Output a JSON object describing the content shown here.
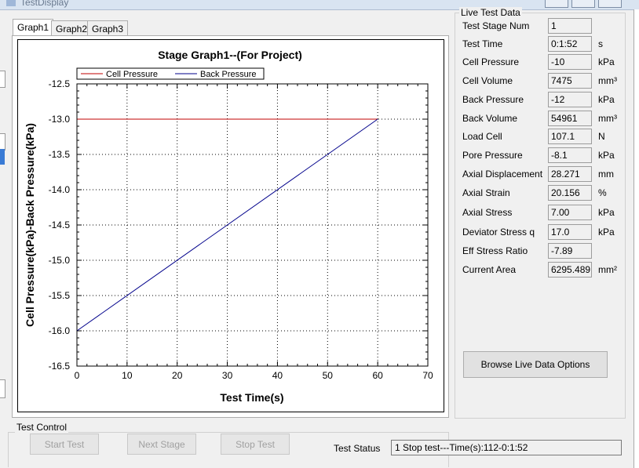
{
  "window": {
    "title": "TestDisplay"
  },
  "tabs": [
    {
      "label": "Graph1",
      "active": true
    },
    {
      "label": "Graph2",
      "active": false
    },
    {
      "label": "Graph3",
      "active": false
    }
  ],
  "chart_data": {
    "type": "line",
    "title": "Stage Graph1--(For Project)",
    "xlabel": "Test Time(s)",
    "ylabel": "Cell Pressure(kPa)-Back Pressure(kPa)",
    "xlim": [
      0,
      70
    ],
    "ylim": [
      -16.5,
      -12.5
    ],
    "x_ticks": [
      0,
      10,
      20,
      30,
      40,
      50,
      60,
      70
    ],
    "y_ticks": [
      -12.5,
      -13.0,
      -13.5,
      -14.0,
      -14.5,
      -15.0,
      -15.5,
      -16.0,
      -16.5
    ],
    "x_tick_labels": [
      "0",
      "10",
      "20",
      "30",
      "40",
      "50",
      "60",
      "70"
    ],
    "y_tick_labels": [
      "-12.5",
      "-13.0",
      "-13.5",
      "-14.0",
      "-14.5",
      "-15.0",
      "-15.5",
      "-16.0",
      "-16.5"
    ],
    "grid": true,
    "legend_position": "top-left",
    "series": [
      {
        "name": "Cell Pressure",
        "color": "#c00000",
        "x": [
          0,
          60
        ],
        "y": [
          -13.0,
          -13.0
        ]
      },
      {
        "name": "Back Pressure",
        "color": "#00008b",
        "x": [
          0,
          60
        ],
        "y": [
          -16.0,
          -13.0
        ]
      }
    ]
  },
  "live_data": {
    "title": "Live Test Data",
    "rows": [
      {
        "label": "Test Stage Num",
        "value": "1",
        "unit": ""
      },
      {
        "label": "Test Time",
        "value": "0:1:52",
        "unit": "s"
      },
      {
        "label": "Cell Pressure",
        "value": "-10",
        "unit": "kPa"
      },
      {
        "label": "Cell Volume",
        "value": "7475",
        "unit": "mm³"
      },
      {
        "label": "Back Pressure",
        "value": "-12",
        "unit": "kPa"
      },
      {
        "label": "Back Volume",
        "value": "54961",
        "unit": "mm³"
      },
      {
        "label": "Load Cell",
        "value": "107.1",
        "unit": "N"
      },
      {
        "label": "Pore Pressure",
        "value": "-8.1",
        "unit": "kPa"
      },
      {
        "label": "Axial Displacement",
        "value": "28.271",
        "unit": "mm"
      },
      {
        "label": "Axial Strain",
        "value": "20.156",
        "unit": "%"
      },
      {
        "label": "Axial Stress",
        "value": "7.00",
        "unit": "kPa"
      },
      {
        "label": "Deviator Stress q",
        "value": "17.0",
        "unit": "kPa"
      },
      {
        "label": "Eff Stress Ratio",
        "value": "-7.89",
        "unit": ""
      },
      {
        "label": "Current Area",
        "value": "6295.489",
        "unit": "mm²"
      }
    ],
    "browse_button": "Browse Live Data Options"
  },
  "test_control": {
    "title": "Test Control",
    "start_label": "Start Test",
    "next_label": "Next Stage",
    "stop_label": "Stop Test",
    "status_label": "Test Status",
    "status_value": "1 Stop test---Time(s):112-0:1:52"
  }
}
